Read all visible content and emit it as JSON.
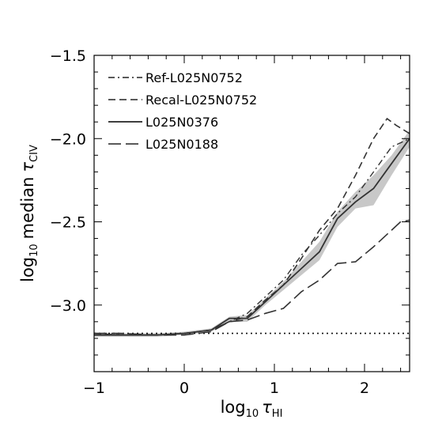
{
  "chart_data": {
    "type": "line",
    "xlabel": {
      "prefix": "log",
      "sub1": "10",
      "tau": "τ",
      "sub2": "HI"
    },
    "ylabel": {
      "prefix": "log",
      "sub1": "10",
      "text": "median",
      "tau": "τ",
      "sub2": "CIV"
    },
    "xlim": [
      -1,
      2.5
    ],
    "ylim": [
      -3.4,
      -1.5
    ],
    "x_ticks": [
      -1,
      0,
      1,
      2
    ],
    "x_tick_labels": [
      "−1",
      "0",
      "1",
      "2"
    ],
    "y_ticks": [
      -3.0,
      -2.5,
      -2.0,
      -1.5
    ],
    "y_tick_labels": [
      "−3.0",
      "−2.5",
      "−2.0",
      "−1.5"
    ],
    "grid": false,
    "legend_position": "top-left",
    "reference_line": {
      "y": -3.17,
      "style": "dotted"
    },
    "series": [
      {
        "name": "Ref-L025N0752",
        "style": "dashdot",
        "x": [
          -1.0,
          -0.7,
          -0.3,
          0.0,
          0.3,
          0.5,
          0.7,
          0.9,
          1.1,
          1.3,
          1.5,
          1.7,
          1.9,
          2.1,
          2.3,
          2.5
        ],
        "y": [
          -3.18,
          -3.18,
          -3.18,
          -3.17,
          -3.15,
          -3.1,
          -3.05,
          -2.95,
          -2.85,
          -2.7,
          -2.58,
          -2.45,
          -2.35,
          -2.2,
          -2.05,
          -2.0
        ]
      },
      {
        "name": "Recal-L025N0752",
        "style": "dashed",
        "x": [
          -1.0,
          -0.7,
          -0.3,
          0.0,
          0.3,
          0.5,
          0.7,
          0.9,
          1.1,
          1.3,
          1.5,
          1.7,
          1.9,
          2.1,
          2.25,
          2.35,
          2.5
        ],
        "y": [
          -3.17,
          -3.18,
          -3.18,
          -3.17,
          -3.15,
          -3.1,
          -3.07,
          -2.97,
          -2.88,
          -2.72,
          -2.55,
          -2.42,
          -2.22,
          -2.0,
          -1.88,
          -1.92,
          -1.97
        ]
      },
      {
        "name": "L025N0376",
        "style": "solid",
        "x": [
          -1.0,
          -0.7,
          -0.3,
          0.0,
          0.3,
          0.5,
          0.7,
          0.9,
          1.1,
          1.3,
          1.5,
          1.7,
          1.9,
          2.1,
          2.3,
          2.5
        ],
        "y": [
          -3.18,
          -3.18,
          -3.18,
          -3.17,
          -3.15,
          -3.08,
          -3.08,
          -2.98,
          -2.88,
          -2.78,
          -2.68,
          -2.48,
          -2.38,
          -2.3,
          -2.15,
          -2.0
        ],
        "band_upper": [
          -3.17,
          -3.17,
          -3.17,
          -3.16,
          -3.14,
          -3.07,
          -3.06,
          -2.96,
          -2.86,
          -2.74,
          -2.62,
          -2.44,
          -2.32,
          -2.22,
          -2.1,
          -1.95
        ],
        "band_lower": [
          -3.19,
          -3.19,
          -3.19,
          -3.18,
          -3.16,
          -3.1,
          -3.1,
          -3.0,
          -2.91,
          -2.82,
          -2.73,
          -2.53,
          -2.42,
          -2.4,
          -2.22,
          -2.05
        ]
      },
      {
        "name": "L025N0188",
        "style": "longdash",
        "x": [
          -1.0,
          -0.7,
          -0.3,
          0.0,
          0.3,
          0.5,
          0.7,
          0.9,
          1.1,
          1.3,
          1.5,
          1.7,
          1.9,
          2.1,
          2.3,
          2.4,
          2.5
        ],
        "y": [
          -3.17,
          -3.17,
          -3.18,
          -3.18,
          -3.16,
          -3.1,
          -3.09,
          -3.05,
          -3.02,
          -2.92,
          -2.85,
          -2.75,
          -2.74,
          -2.65,
          -2.55,
          -2.5,
          -2.49
        ]
      }
    ]
  }
}
